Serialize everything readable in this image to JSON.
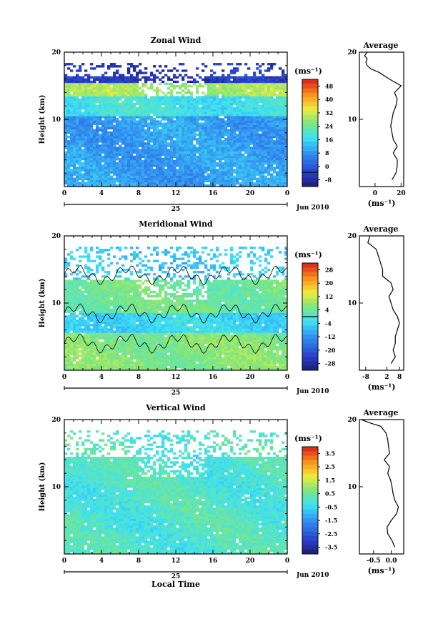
{
  "figure": {
    "xlabel": "Local Time",
    "date_label": "Jun 2010",
    "day_label": "25",
    "avg_title": "Average",
    "unit_label": "(ms⁻¹)"
  },
  "chart_data": [
    {
      "type": "heatmap",
      "title": "Zonal Wind",
      "ylabel": "Height (km)",
      "x_ticks": [
        "0",
        "4",
        "8",
        "12",
        "16",
        "20",
        "0"
      ],
      "y_ticks": [
        "10",
        "20"
      ],
      "colorbar_unit": "(ms⁻¹)",
      "colorbar_ticks": [
        "48",
        "40",
        "32",
        "24",
        "16",
        "8",
        "0",
        "-8"
      ],
      "clim": [
        -8,
        52
      ],
      "zero_line": 0,
      "profile": {
        "title": "Average",
        "x_ticks": [
          "0",
          "20"
        ],
        "xlim": [
          -12,
          22
        ],
        "xlabel": "(ms⁻¹)",
        "y_ticks": [
          "10",
          "20"
        ],
        "heights": [
          1,
          2,
          3,
          4,
          5,
          6,
          7,
          8,
          9,
          10,
          11,
          12,
          13,
          14,
          15,
          16,
          17,
          17.5,
          18,
          18.5,
          19,
          19.5,
          20
        ],
        "values": [
          13,
          16,
          17,
          17,
          14,
          17,
          14,
          13,
          12,
          13,
          14,
          16,
          17,
          15,
          20,
          11,
          3,
          -3,
          -6,
          -7,
          -6,
          -8,
          -6
        ]
      }
    },
    {
      "type": "heatmap",
      "title": "Meridional Wind",
      "ylabel": "Height (km)",
      "x_ticks": [
        "0",
        "4",
        "8",
        "12",
        "16",
        "20",
        "0"
      ],
      "y_ticks": [
        "10",
        "20"
      ],
      "colorbar_unit": "(ms⁻¹)",
      "colorbar_ticks": [
        "28",
        "20",
        "12",
        "4",
        "-4",
        "-12",
        "-20",
        "-28"
      ],
      "clim": [
        -32,
        32
      ],
      "zero_line": 0,
      "profile": {
        "title": "Average",
        "x_ticks": [
          "-8",
          "2",
          "8"
        ],
        "xlim": [
          -11,
          10
        ],
        "xlabel": "(ms⁻¹)",
        "y_ticks": [
          "10",
          "20"
        ],
        "heights": [
          1,
          2,
          3,
          4,
          5,
          6,
          7,
          8,
          9,
          10,
          11,
          12,
          13,
          14,
          15,
          16,
          17,
          18,
          19,
          20
        ],
        "values": [
          4,
          6,
          5,
          6,
          6,
          7,
          8,
          7,
          5,
          4,
          3,
          5,
          4,
          0,
          0,
          -1,
          -2,
          -3,
          -7,
          -6
        ]
      }
    },
    {
      "type": "heatmap",
      "title": "Vertical Wind",
      "ylabel": "Height (km)",
      "x_ticks": [
        "0",
        "4",
        "8",
        "12",
        "16",
        "20",
        "0"
      ],
      "y_ticks": [
        "10",
        "20"
      ],
      "colorbar_unit": "(ms⁻¹)",
      "colorbar_ticks": [
        "3.5",
        "2.5",
        "1.5",
        "0.5",
        "-0.5",
        "-1.5",
        "-2.5",
        "-3.5"
      ],
      "clim": [
        -4,
        4
      ],
      "profile": {
        "title": "Average",
        "x_ticks": [
          "-0.5",
          "0.0"
        ],
        "xlim": [
          -0.9,
          0.35
        ],
        "xlabel": "(ms⁻¹)",
        "y_ticks": [
          "10",
          "20"
        ],
        "heights": [
          1,
          2,
          3,
          4,
          5,
          6,
          7,
          8,
          9,
          10,
          11,
          12,
          13,
          14,
          15,
          16,
          17,
          18,
          19,
          19.5,
          20
        ],
        "values": [
          0.1,
          0.02,
          -0.1,
          -0.12,
          0.0,
          0.15,
          0.2,
          0.1,
          0.05,
          0.02,
          -0.02,
          -0.1,
          -0.05,
          -0.2,
          -0.05,
          -0.08,
          -0.1,
          -0.15,
          -0.3,
          -0.6,
          -0.85
        ]
      }
    }
  ]
}
